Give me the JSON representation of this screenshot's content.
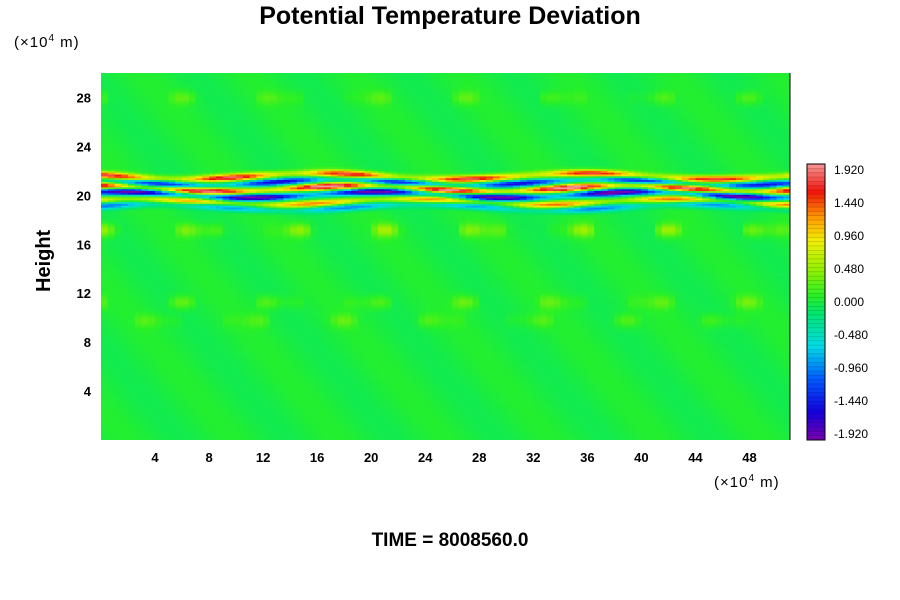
{
  "chart_data": {
    "type": "heatmap",
    "title": "Potential Temperature Deviation",
    "ylabel": "Height",
    "y_unit": {
      "prefix": "(×10",
      "exp": "4",
      "suffix": " m)"
    },
    "x_unit": {
      "prefix": "(×10",
      "exp": "4",
      "suffix": " m)"
    },
    "xlim": [
      0,
      51
    ],
    "ylim": [
      0,
      30
    ],
    "x_ticks": [
      "4",
      "8",
      "12",
      "16",
      "20",
      "24",
      "28",
      "32",
      "36",
      "40",
      "44",
      "48"
    ],
    "y_ticks": [
      "4",
      "8",
      "12",
      "16",
      "20",
      "24",
      "28"
    ],
    "colorbar": {
      "range": [
        -1.92,
        1.92
      ],
      "ticks": [
        "1.920",
        "1.440",
        "0.960",
        "0.480",
        "0.000",
        "-0.480",
        "-0.960",
        "-1.440",
        "-1.920"
      ]
    },
    "field_description": "Strong alternating positive/negative deviation layers between heights ~19 and ~22.5; near-zero elsewhere with weak positive streaks near 10-12 and 16-18, slight positive near 28.",
    "features": [
      {
        "name": "band-upper-positive",
        "height": 21.6,
        "value": 1.6
      },
      {
        "name": "band-upper-negative",
        "height": 21.1,
        "value": -1.4
      },
      {
        "name": "band-mid-positive",
        "height": 20.6,
        "value": 1.9
      },
      {
        "name": "band-mid-negative",
        "height": 20.1,
        "value": -1.9
      },
      {
        "name": "band-lower-positive",
        "height": 19.5,
        "value": 1.2
      },
      {
        "name": "band-lower-negative",
        "height": 19.1,
        "value": -0.9
      },
      {
        "name": "streak-16",
        "height": 17.2,
        "value": 0.4
      },
      {
        "name": "streak-11",
        "height": 11.3,
        "value": 0.25
      },
      {
        "name": "streak-10",
        "height": 9.8,
        "value": 0.2
      },
      {
        "name": "top-positive",
        "height": 28.0,
        "value": 0.2
      }
    ]
  },
  "footer": {
    "time_label": "TIME = 8008560.0"
  }
}
